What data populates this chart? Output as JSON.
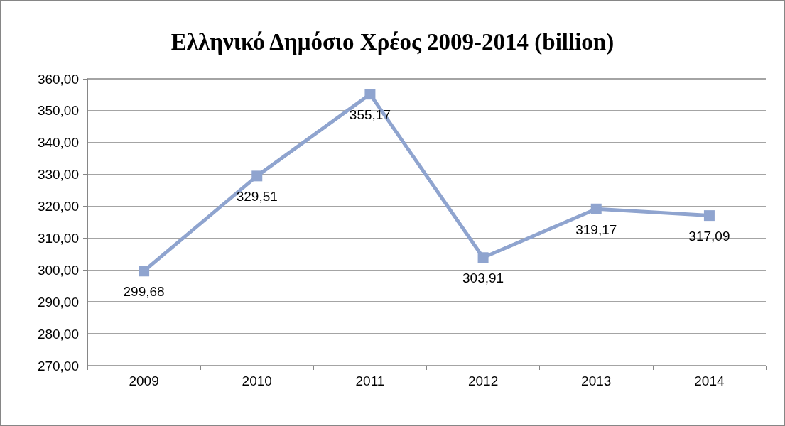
{
  "chart_data": {
    "type": "line",
    "title": "Ελληνικό Δημόσιο Χρέος 2009-2014 (billion)",
    "categories": [
      "2009",
      "2010",
      "2011",
      "2012",
      "2013",
      "2014"
    ],
    "series": [
      {
        "color": "#8fa4cf",
        "values": [
          299.68,
          329.51,
          355.17,
          303.91,
          319.17,
          317.09
        ],
        "value_labels": [
          "299,68",
          "329,51",
          "355,17",
          "303,91",
          "319,17",
          "317,09"
        ]
      }
    ],
    "ylim": [
      270,
      360
    ],
    "yticks": [
      {
        "value": 270,
        "label": "270,00"
      },
      {
        "value": 280,
        "label": "280,00"
      },
      {
        "value": 290,
        "label": "290,00"
      },
      {
        "value": 300,
        "label": "300,00"
      },
      {
        "value": 310,
        "label": "310,00"
      },
      {
        "value": 320,
        "label": "320,00"
      },
      {
        "value": 330,
        "label": "330,00"
      },
      {
        "value": 340,
        "label": "340,00"
      },
      {
        "value": 350,
        "label": "350,00"
      },
      {
        "value": 360,
        "label": "360,00"
      }
    ],
    "grid": "y",
    "marker": "square",
    "line_style": "solid"
  }
}
